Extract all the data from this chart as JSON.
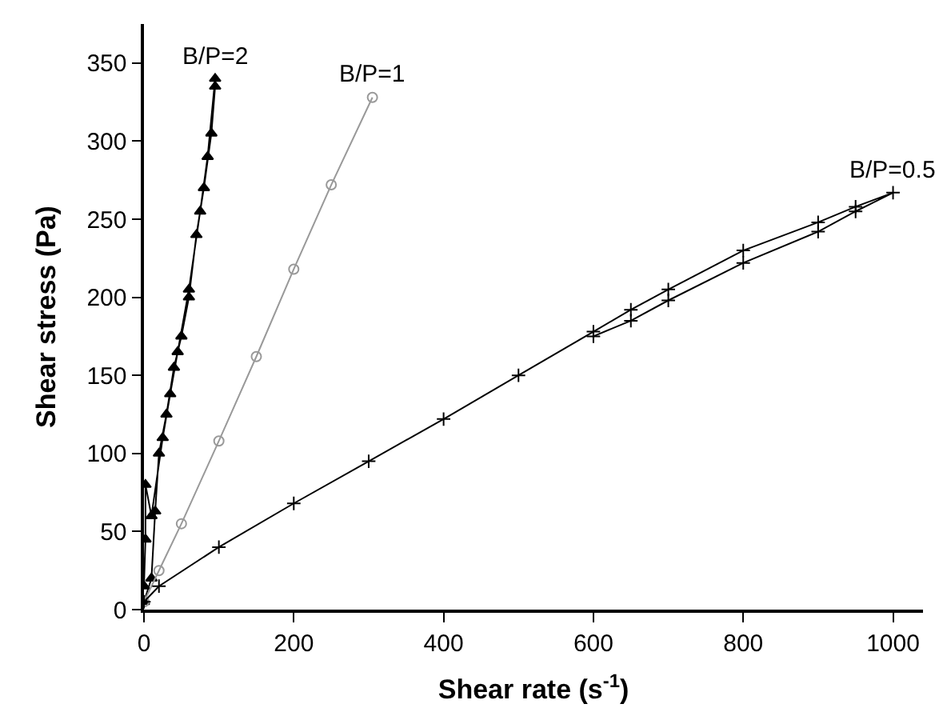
{
  "chart_data": {
    "type": "line",
    "xlabel": "Shear rate (s$^{-1}$)",
    "ylabel": "Shear stress (Pa)",
    "xlim": [
      0,
      1040
    ],
    "ylim": [
      0,
      375
    ],
    "xticks": [
      0,
      200,
      400,
      600,
      800,
      1000
    ],
    "yticks": [
      0,
      50,
      100,
      150,
      200,
      250,
      300,
      350
    ],
    "legend": false,
    "series": [
      {
        "name": "B/P=2",
        "color": "#000000",
        "marker": "triangle",
        "x": [
          0,
          10,
          15,
          20,
          30,
          40,
          50,
          60,
          70,
          80,
          90,
          95,
          95,
          85,
          75,
          60,
          45,
          35,
          25,
          10,
          2,
          2,
          0
        ],
        "values": [
          5,
          20,
          63,
          100,
          125,
          155,
          175,
          200,
          240,
          270,
          305,
          335,
          340,
          290,
          255,
          205,
          165,
          138,
          110,
          60,
          80,
          45,
          15
        ]
      },
      {
        "name": "B/P=1",
        "color": "#999999",
        "marker": "circle",
        "x": [
          0,
          20,
          50,
          100,
          150,
          200,
          250,
          305
        ],
        "values": [
          5,
          25,
          55,
          108,
          162,
          218,
          272,
          328
        ]
      },
      {
        "name": "B/P=0.5",
        "color": "#000000",
        "marker": "cross",
        "x": [
          0,
          20,
          100,
          200,
          300,
          400,
          500,
          600,
          650,
          700,
          800,
          900,
          950,
          1000,
          950,
          900,
          800,
          700,
          650,
          600
        ],
        "values": [
          5,
          15,
          40,
          68,
          95,
          122,
          150,
          178,
          192,
          205,
          230,
          248,
          258,
          267,
          255,
          242,
          222,
          198,
          185,
          175
        ]
      }
    ]
  }
}
